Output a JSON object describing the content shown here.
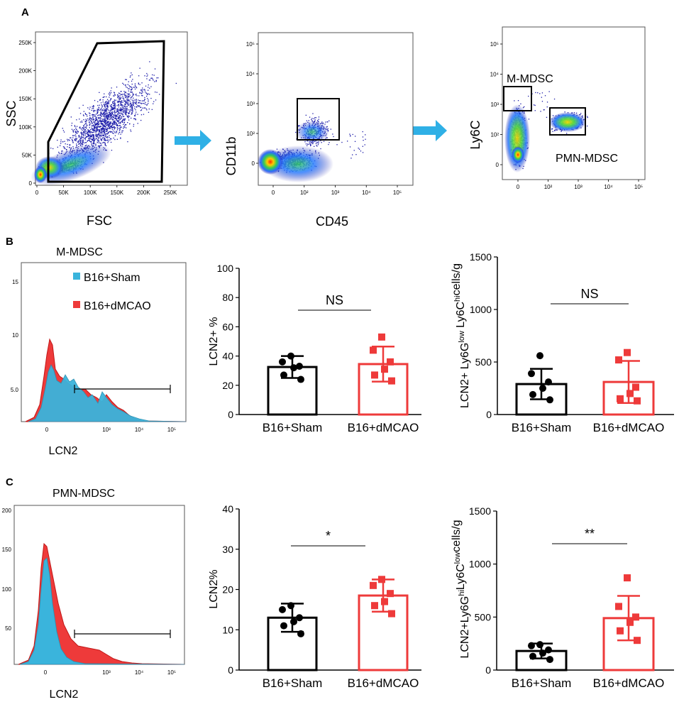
{
  "figure": {
    "panel_letters": [
      "A",
      "B",
      "C"
    ]
  },
  "colors": {
    "sham": "#3ab4dc",
    "dmcao": "#ee3a3a",
    "arrow": "#2fb0e6",
    "flow_dot": "#1a1aa8"
  },
  "panel_a": {
    "plot1": {
      "xlabel": "FSC",
      "ylabel": "SSC",
      "xticks": [
        "0",
        "50K",
        "100K",
        "150K",
        "200K",
        "250K"
      ],
      "yticks": [
        "0",
        "50K",
        "100K",
        "150K",
        "200K",
        "250K"
      ]
    },
    "plot2": {
      "xlabel": "CD45",
      "ylabel": "CD11b",
      "xticks": [
        "0",
        "10²",
        "10³",
        "10⁴",
        "10⁵"
      ],
      "yticks": [
        "0",
        "10²",
        "10³",
        "10⁴",
        "10⁵"
      ]
    },
    "plot3": {
      "xlabel": "",
      "ylabel": "Ly6C",
      "xticks": [
        "0",
        "10²",
        "10³",
        "10⁴",
        "10⁵"
      ],
      "yticks": [
        "0",
        "10²",
        "10³",
        "10⁴",
        "10⁵"
      ],
      "gates": [
        "M-MDSC",
        "PMN-MDSC"
      ]
    }
  },
  "panel_b": {
    "hist": {
      "title": "M-MDSC",
      "xlabel": "LCN2",
      "legend": [
        "B16+Sham",
        "B16+dMCAO"
      ],
      "yticks": [
        "5.0",
        "10",
        "15"
      ],
      "xticks": [
        "0",
        "10³",
        "10⁴",
        "10⁵"
      ]
    }
  },
  "panel_c": {
    "hist": {
      "title": "PMN-MDSC",
      "xlabel": "LCN2",
      "yticks": [
        "50",
        "100",
        "150",
        "200"
      ],
      "xticks": [
        "0",
        "10³",
        "10⁴",
        "10⁵"
      ]
    }
  },
  "chart_data": [
    {
      "id": "b_pct",
      "type": "bar",
      "title": "",
      "categories": [
        "B16+Sham",
        "B16+dMCAO"
      ],
      "series": [
        {
          "name": "LCN2+ %",
          "values": [
            32.5,
            34.5
          ],
          "sd": [
            7.5,
            12
          ],
          "points": [
            [
              40,
              36,
              33,
              32,
              27,
              24
            ],
            [
              53,
              44,
              36,
              31,
              27,
              23
            ]
          ]
        }
      ],
      "ylabel": "LCN2+ %",
      "ylim": [
        0,
        100
      ],
      "yticks": [
        "0",
        "20",
        "40",
        "60",
        "80",
        "100"
      ],
      "significance": "NS"
    },
    {
      "id": "b_abs",
      "type": "bar",
      "title": "",
      "categories": [
        "B16+Sham",
        "B16+dMCAO"
      ],
      "series": [
        {
          "name": "LCN2+ Ly6Glow Ly6Chi cells/g",
          "values": [
            290,
            310
          ],
          "sd": [
            145,
            200
          ],
          "points": [
            [
              560,
              390,
              310,
              250,
              190,
              140
            ],
            [
              590,
              520,
              260,
              200,
              150,
              130
            ]
          ]
        }
      ],
      "ylabel": "LCN2+ Ly6Glow Ly6Chicells/g",
      "ylim": [
        0,
        1500
      ],
      "yticks": [
        "0",
        "500",
        "1000",
        "1500"
      ],
      "significance": "NS"
    },
    {
      "id": "c_pct",
      "type": "bar",
      "title": "",
      "categories": [
        "B16+Sham",
        "B16+dMCAO"
      ],
      "series": [
        {
          "name": "LCN2%",
          "values": [
            13,
            18.5
          ],
          "sd": [
            3.5,
            4
          ],
          "points": [
            [
              16,
              15,
              13,
              12,
              11,
              9
            ],
            [
              22.5,
              21,
              19,
              17,
              16,
              14
            ]
          ]
        }
      ],
      "ylabel": "LCN2%",
      "ylim": [
        0,
        40
      ],
      "yticks": [
        "0",
        "10",
        "20",
        "30",
        "40"
      ],
      "significance": "*"
    },
    {
      "id": "c_abs",
      "type": "bar",
      "title": "",
      "categories": [
        "B16+Sham",
        "B16+dMCAO"
      ],
      "series": [
        {
          "name": "LCN2+Ly6Ghi Ly6Clow cells/g",
          "values": [
            180,
            490
          ],
          "sd": [
            70,
            210
          ],
          "points": [
            [
              240,
              230,
              190,
              160,
              130,
              100
            ],
            [
              870,
              600,
              500,
              450,
              370,
              280
            ]
          ]
        }
      ],
      "ylabel": "LCN2+Ly6GhiLy6Clowcells/g",
      "ylim": [
        0,
        1500
      ],
      "yticks": [
        "0",
        "500",
        "1000",
        "1500"
      ],
      "significance": "**"
    }
  ]
}
